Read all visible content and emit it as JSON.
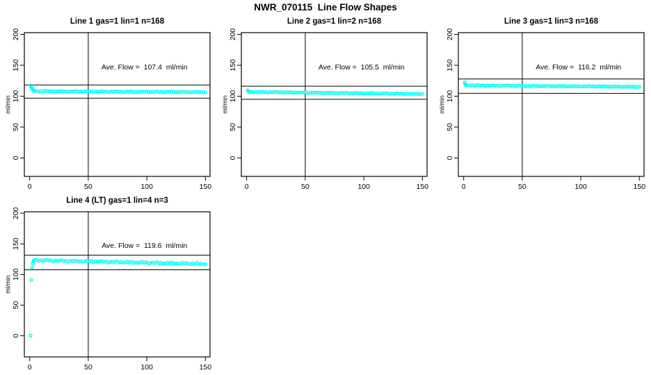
{
  "page": {
    "title": "NWR_070115  Line Flow Shapes"
  },
  "chart_data": [
    {
      "type": "scatter",
      "title": "Line 1 gas=1 lin=1 n=168",
      "ylabel": "ml/min",
      "xlabel": "",
      "xticks": [
        0,
        50,
        100,
        150
      ],
      "yticks": [
        0,
        50,
        100,
        150,
        200
      ],
      "xlim": [
        -5,
        155
      ],
      "ylim": [
        -30,
        203
      ],
      "grid": false,
      "legend": "none",
      "annotation": "Ave. Flow =  107.4  ml/min",
      "ave_flow_ml_min": 107.4,
      "n": 168,
      "marker": "open-circle",
      "marker_color": "#00ffff",
      "ref_line_upper": 118.1,
      "ref_line_lower": 96.7,
      "vline_x": 50,
      "head_points": [
        [
          0.9,
          117.4
        ],
        [
          1.3,
          114.9
        ],
        [
          1.8,
          112.9
        ],
        [
          2.3,
          111.3
        ],
        [
          2.9,
          109.9
        ],
        [
          3.5,
          108.9
        ]
      ],
      "band": {
        "x_start": 4,
        "x_end": 150,
        "n": 82,
        "v_start": 108.1,
        "v_end": 106.6,
        "wobble": 0.8
      }
    },
    {
      "type": "scatter",
      "title": "Line 2 gas=1 lin=2 n=168",
      "ylabel": "ml/min",
      "xlabel": "",
      "xticks": [
        0,
        50,
        100,
        150
      ],
      "yticks": [
        0,
        50,
        100,
        150,
        200
      ],
      "xlim": [
        -5,
        155
      ],
      "ylim": [
        -30,
        203
      ],
      "grid": false,
      "legend": "none",
      "annotation": "Ave. Flow =  105.5  ml/min",
      "ave_flow_ml_min": 105.5,
      "n": 168,
      "marker": "open-circle",
      "marker_color": "#00ffff",
      "ref_line_upper": 116.1,
      "ref_line_lower": 95.0,
      "vline_x": 50,
      "head_points": [
        [
          0.9,
          109.3
        ],
        [
          1.5,
          107.9
        ]
      ],
      "band": {
        "x_start": 2.2,
        "x_end": 150,
        "n": 83,
        "v_start": 106.9,
        "v_end": 103.6,
        "wobble": 0.8
      }
    },
    {
      "type": "scatter",
      "title": "Line 3 gas=1 lin=3 n=168",
      "ylabel": "ml/min",
      "xlabel": "",
      "xticks": [
        0,
        50,
        100,
        150
      ],
      "yticks": [
        0,
        50,
        100,
        150,
        200
      ],
      "xlim": [
        -5,
        155
      ],
      "ylim": [
        -30,
        203
      ],
      "grid": false,
      "legend": "none",
      "annotation": "Ave. Flow =  116.2  ml/min",
      "ave_flow_ml_min": 116.2,
      "n": 168,
      "marker": "open-circle",
      "marker_color": "#00ffff",
      "ref_line_upper": 127.8,
      "ref_line_lower": 104.6,
      "vline_x": 50,
      "head_points": [
        [
          0.9,
          122.2
        ],
        [
          1.2,
          119.6
        ],
        [
          1.7,
          118.4
        ]
      ],
      "band": {
        "x_start": 2.4,
        "x_end": 150,
        "n": 83,
        "v_start": 117.4,
        "v_end": 115.2,
        "wobble": 0.8
      }
    },
    {
      "type": "scatter",
      "title": "Line 4 (LT) gas=1 lin=4 n=3",
      "ylabel": "ml/min",
      "xlabel": "",
      "xticks": [
        0,
        50,
        100,
        150
      ],
      "yticks": [
        0,
        50,
        100,
        150,
        200
      ],
      "xlim": [
        -5,
        155
      ],
      "ylim": [
        -30,
        203
      ],
      "grid": false,
      "legend": "none",
      "annotation": "Ave. Flow =  119.6  ml/min",
      "ave_flow_ml_min": 119.6,
      "n": 3,
      "marker": "open-circle",
      "marker_color": "#00ffff",
      "ref_line_upper": 131.6,
      "ref_line_lower": 107.6,
      "vline_x": 50,
      "head_points": [
        [
          0.8,
          0.3
        ],
        [
          1.3,
          91
        ],
        [
          2,
          111
        ],
        [
          2.6,
          117.5
        ],
        [
          3.1,
          121.5
        ],
        [
          3.6,
          123.2
        ]
      ],
      "band": {
        "x_start": 4,
        "x_end": 150,
        "n": 82,
        "v_start": 123.3,
        "v_end": 117.2,
        "wobble": 1.5
      }
    }
  ]
}
